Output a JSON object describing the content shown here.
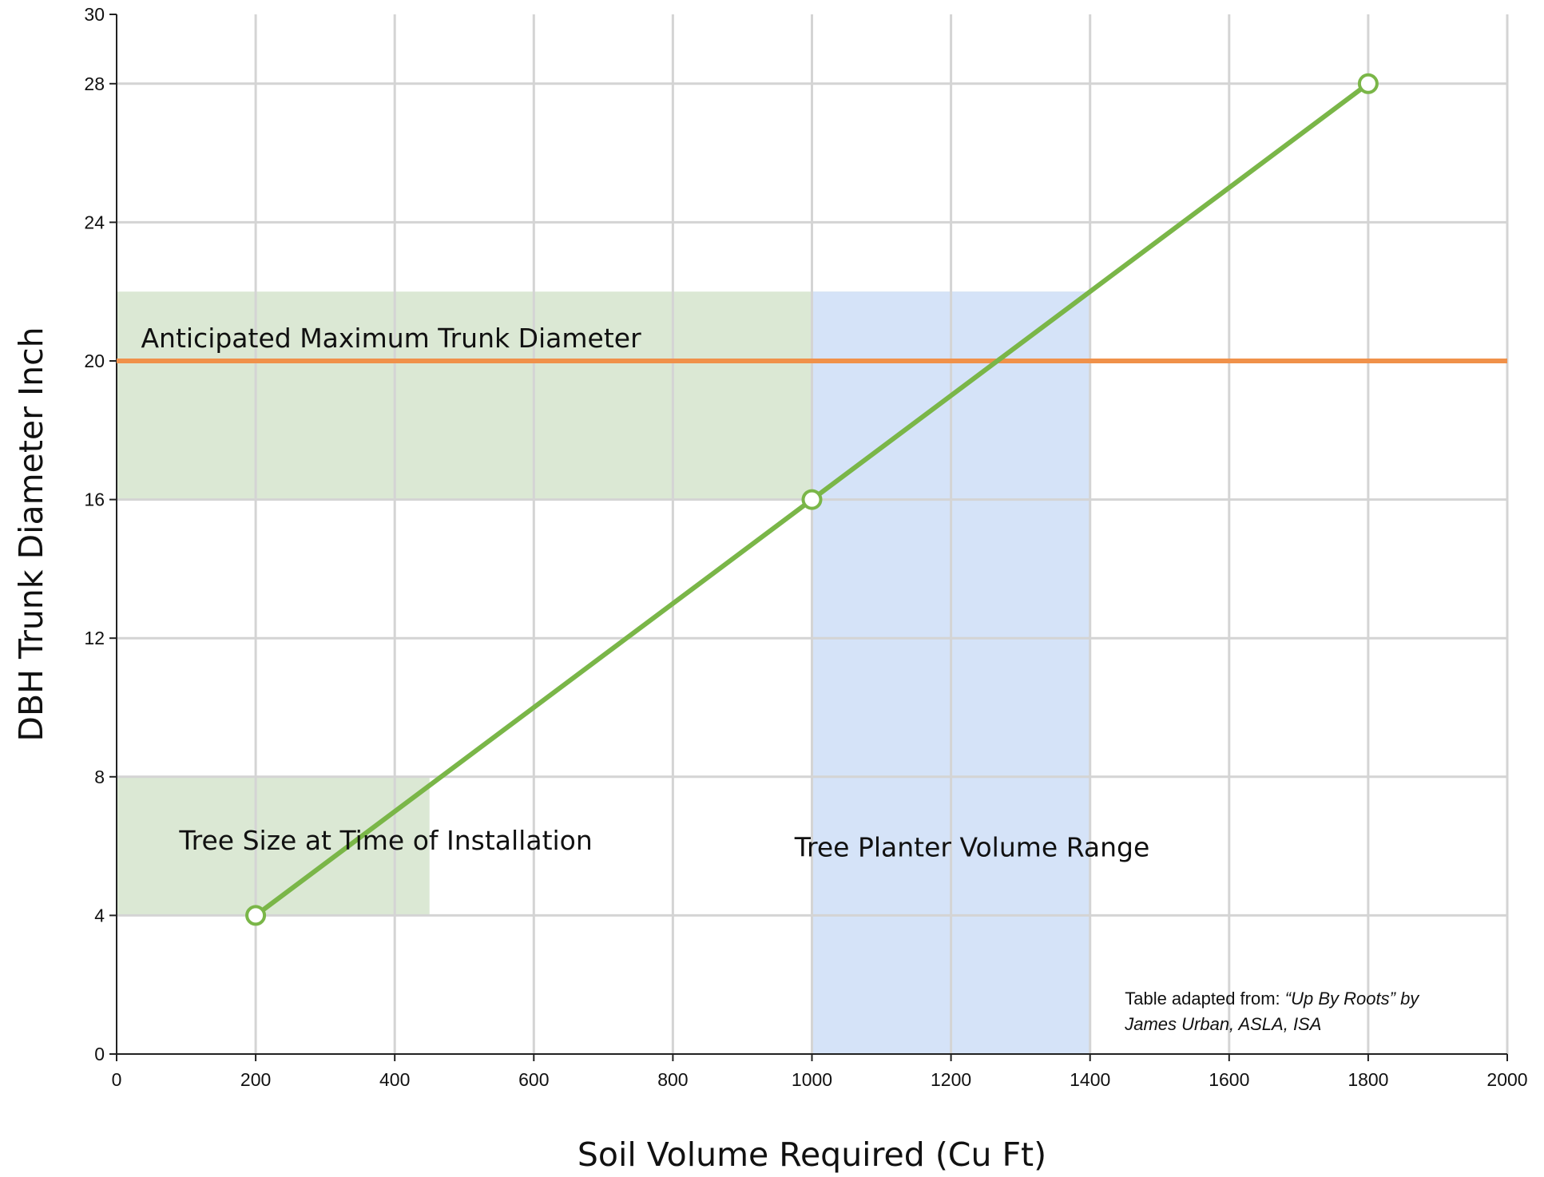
{
  "chart_data": {
    "type": "line",
    "title": "",
    "xlabel": "Soil Volume Required (Cu Ft)",
    "ylabel": "DBH Trunk Diameter Inch",
    "xlim": [
      0,
      2000
    ],
    "ylim": [
      0,
      30
    ],
    "xticks": [
      0,
      200,
      400,
      600,
      800,
      1000,
      1200,
      1400,
      1600,
      1800,
      2000
    ],
    "yticks": [
      0,
      4,
      8,
      12,
      16,
      20,
      24,
      28,
      30
    ],
    "grid": true,
    "series": [
      {
        "color": "#7ab648",
        "marker": "open-circle",
        "points": [
          {
            "x": 200,
            "y": 4
          },
          {
            "x": 1000,
            "y": 16
          },
          {
            "x": 1800,
            "y": 28
          }
        ]
      }
    ],
    "reference_line": {
      "y": 20,
      "label": "Anticipated Maximum Trunk Diameter",
      "color": "#f0914a"
    },
    "bands": [
      {
        "label": "",
        "orientation": "horizontal",
        "x_range": [
          0,
          1400
        ],
        "y_range": [
          16,
          22
        ],
        "color": "#dbe8d4"
      },
      {
        "label": "Tree Size at Time of Installation",
        "orientation": "horizontal",
        "x_range": [
          0,
          450
        ],
        "y_range": [
          4,
          8
        ],
        "color": "#dbe8d4"
      },
      {
        "label": "Tree Planter Volume Range",
        "orientation": "vertical",
        "x_range": [
          1000,
          1400
        ],
        "y_range": [
          0,
          22
        ],
        "color": "#d5e3f8"
      }
    ],
    "source_note": {
      "prefix": "Table adapted from: ",
      "title": "“Up By Roots”",
      "suffix": " by",
      "line2": "James Urban, ASLA, ISA"
    }
  }
}
